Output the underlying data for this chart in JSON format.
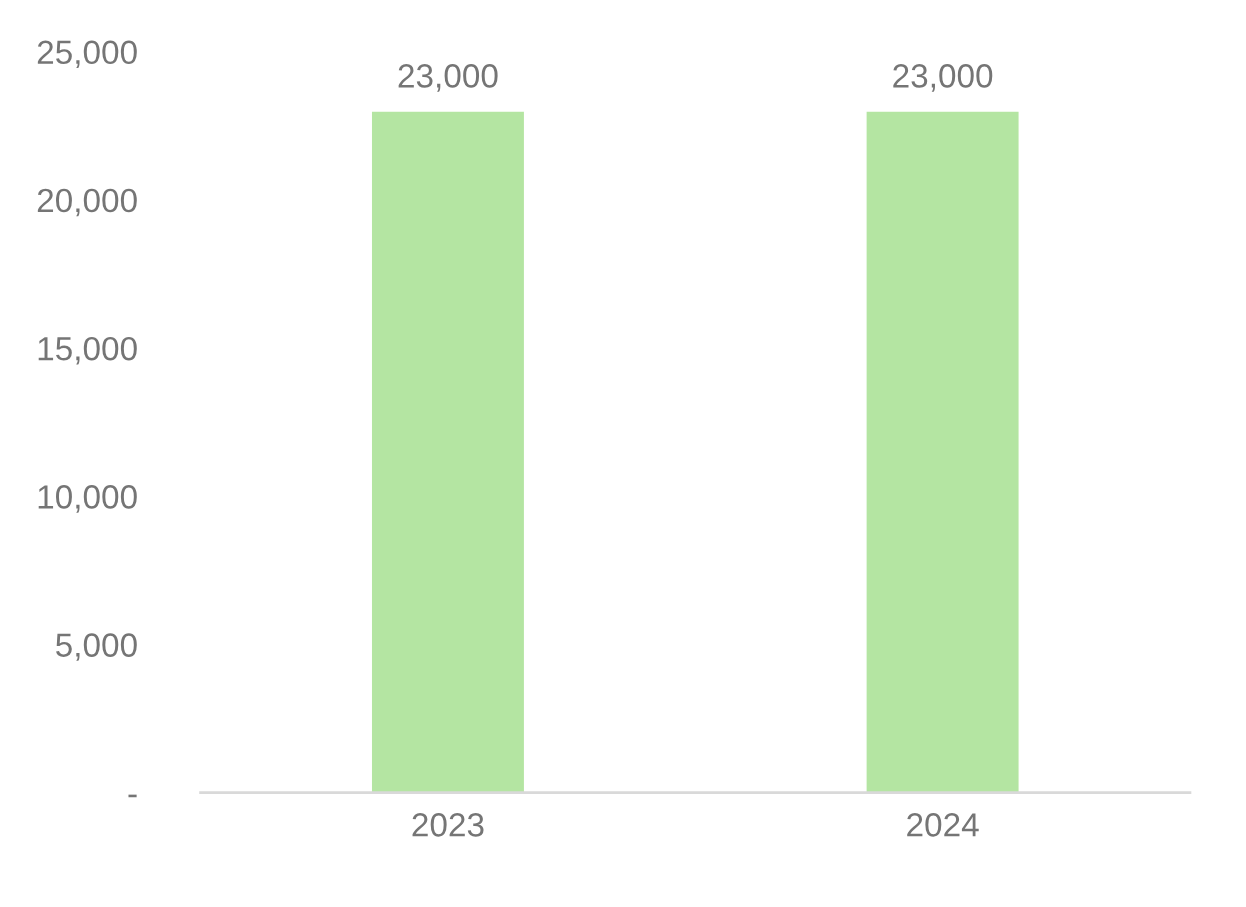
{
  "chart_data": {
    "type": "bar",
    "categories": [
      "2023",
      "2024"
    ],
    "values": [
      23000,
      23000
    ],
    "value_labels": [
      "23,000",
      "23,000"
    ],
    "color": "#b4e5a2",
    "ylim": [
      0,
      25000
    ],
    "yticks": [
      {
        "value": 0,
        "label": "-"
      },
      {
        "value": 5000,
        "label": "5,000"
      },
      {
        "value": 10000,
        "label": "10,000"
      },
      {
        "value": 15000,
        "label": "15,000"
      },
      {
        "value": 20000,
        "label": "20,000"
      },
      {
        "value": 25000,
        "label": "25,000"
      }
    ],
    "grid": false,
    "legend": false
  }
}
